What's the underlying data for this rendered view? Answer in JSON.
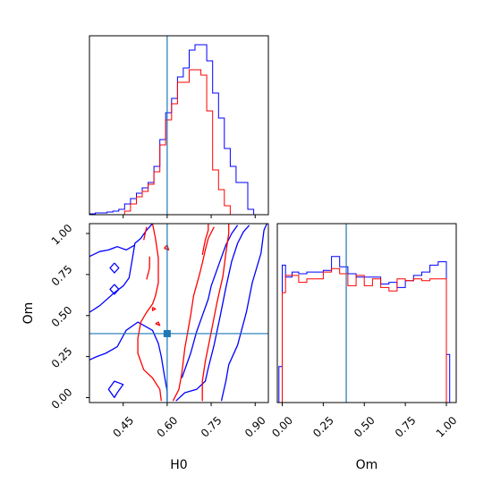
{
  "chart_data": {
    "type": "corner",
    "parameters": [
      "H0",
      "Om"
    ],
    "truths": {
      "H0": 0.6,
      "Om": 0.39
    },
    "colors": {
      "series_a": "#0000ff",
      "series_b": "#ff0000",
      "truth": "#1f77b4"
    },
    "series": [
      {
        "color": "#0000ff"
      },
      {
        "color": "#ff0000"
      }
    ],
    "axes": {
      "H0": {
        "range": [
          0.335,
          0.945
        ],
        "ticks": [
          0.45,
          0.6,
          0.75,
          0.9
        ],
        "tick_labels": [
          "0.45",
          "0.60",
          "0.75",
          "0.90"
        ],
        "label": "H0"
      },
      "Om": {
        "range": [
          -0.03,
          1.06
        ],
        "ticks": [
          0,
          0.25,
          0.5,
          0.75,
          1.0
        ],
        "tick_labels": [
          "0.00",
          "0.25",
          "0.50",
          "0.75",
          "1.00"
        ],
        "label": "Om"
      }
    },
    "hist_H0": {
      "edges": [
        0.335,
        0.355,
        0.375,
        0.395,
        0.415,
        0.435,
        0.455,
        0.475,
        0.495,
        0.515,
        0.535,
        0.555,
        0.575,
        0.595,
        0.615,
        0.635,
        0.655,
        0.675,
        0.695,
        0.715,
        0.735,
        0.755,
        0.775,
        0.795,
        0.815,
        0.835,
        0.855,
        0.875,
        0.895,
        0.915,
        0.935
      ],
      "series_a": [
        0.005,
        0.01,
        0.01,
        0.015,
        0.02,
        0.03,
        0.06,
        0.09,
        0.12,
        0.15,
        0.18,
        0.27,
        0.42,
        0.57,
        0.65,
        0.77,
        0.82,
        0.92,
        0.95,
        0.95,
        0.86,
        0.68,
        0.54,
        0.37,
        0.27,
        0.18,
        0.18,
        0.03,
        0.0,
        0.0
      ],
      "series_b": [
        0.0,
        0.0,
        0.0,
        0.0,
        0.0,
        0.0,
        0.02,
        0.06,
        0.1,
        0.13,
        0.17,
        0.24,
        0.39,
        0.53,
        0.62,
        0.74,
        0.74,
        0.81,
        0.81,
        0.78,
        0.58,
        0.25,
        0.14,
        0.05,
        0.0,
        0.0,
        0.0,
        0.0,
        0.0,
        0.0
      ]
    },
    "hist_Om": {
      "edges": [
        -0.02,
        0.0,
        0.02,
        0.06,
        0.1,
        0.15,
        0.2,
        0.25,
        0.3,
        0.35,
        0.4,
        0.45,
        0.5,
        0.55,
        0.6,
        0.65,
        0.7,
        0.75,
        0.8,
        0.85,
        0.9,
        0.95,
        1.0,
        1.02
      ],
      "series_a": [
        0.21,
        0.8,
        0.73,
        0.76,
        0.75,
        0.76,
        0.76,
        0.77,
        0.85,
        0.79,
        0.75,
        0.73,
        0.73,
        0.73,
        0.69,
        0.7,
        0.67,
        0.71,
        0.74,
        0.76,
        0.8,
        0.82,
        0.28
      ],
      "series_b": [
        0.0,
        0.64,
        0.74,
        0.74,
        0.7,
        0.72,
        0.72,
        0.76,
        0.78,
        0.75,
        0.68,
        0.74,
        0.68,
        0.72,
        0.67,
        0.65,
        0.72,
        0.71,
        0.72,
        0.71,
        0.72,
        0.72,
        0.0
      ]
    },
    "contours": {
      "series_a": [
        [
          [
            0.335,
            0.23
          ],
          [
            0.36,
            0.25
          ],
          [
            0.39,
            0.27
          ],
          [
            0.43,
            0.31
          ],
          [
            0.46,
            0.41
          ],
          [
            0.5,
            0.46
          ],
          [
            0.55,
            0.41
          ],
          [
            0.57,
            0.33
          ],
          [
            0.58,
            0.25
          ],
          [
            0.59,
            0.14
          ],
          [
            0.6,
            0.04
          ],
          [
            0.6,
            -0.02
          ]
        ],
        [
          [
            0.335,
            0.52
          ],
          [
            0.37,
            0.56
          ],
          [
            0.42,
            0.64
          ],
          [
            0.45,
            0.68
          ],
          [
            0.47,
            0.73
          ],
          [
            0.48,
            0.83
          ],
          [
            0.49,
            0.94
          ],
          [
            0.51,
            0.97
          ],
          [
            0.53,
            1.02
          ],
          [
            0.55,
            1.06
          ]
        ],
        [
          [
            0.335,
            0.86
          ],
          [
            0.37,
            0.89
          ],
          [
            0.4,
            0.9
          ],
          [
            0.43,
            0.92
          ],
          [
            0.46,
            0.9
          ],
          [
            0.49,
            0.93
          ]
        ],
        [
          [
            0.42,
            0.0
          ],
          [
            0.4,
            0.05
          ],
          [
            0.42,
            0.1
          ],
          [
            0.45,
            0.08
          ],
          [
            0.43,
            0.03
          ],
          [
            0.42,
            0.0
          ]
        ],
        [
          [
            0.42,
            0.82
          ],
          [
            0.435,
            0.79
          ],
          [
            0.42,
            0.76
          ],
          [
            0.405,
            0.79
          ],
          [
            0.42,
            0.82
          ]
        ],
        [
          [
            0.42,
            0.69
          ],
          [
            0.435,
            0.66
          ],
          [
            0.42,
            0.63
          ],
          [
            0.405,
            0.66
          ],
          [
            0.42,
            0.69
          ]
        ],
        [
          [
            0.63,
            -0.02
          ],
          [
            0.66,
            0.03
          ],
          [
            0.7,
            0.05
          ],
          [
            0.73,
            0.1
          ],
          [
            0.74,
            0.18
          ],
          [
            0.76,
            0.32
          ],
          [
            0.78,
            0.49
          ],
          [
            0.8,
            0.67
          ],
          [
            0.82,
            0.83
          ],
          [
            0.84,
            0.94
          ],
          [
            0.86,
            1.01
          ],
          [
            0.88,
            1.05
          ]
        ],
        [
          [
            0.65,
            0.12
          ],
          [
            0.68,
            0.27
          ],
          [
            0.7,
            0.4
          ],
          [
            0.72,
            0.5
          ],
          [
            0.74,
            0.6
          ],
          [
            0.75,
            0.68
          ],
          [
            0.78,
            0.83
          ],
          [
            0.8,
            0.93
          ],
          [
            0.82,
            1.0
          ],
          [
            0.84,
            1.05
          ]
        ],
        [
          [
            0.785,
            -0.02
          ],
          [
            0.8,
            0.1
          ],
          [
            0.81,
            0.2
          ],
          [
            0.84,
            0.32
          ],
          [
            0.87,
            0.52
          ],
          [
            0.89,
            0.7
          ],
          [
            0.92,
            0.88
          ],
          [
            0.93,
            1.02
          ],
          [
            0.94,
            1.06
          ]
        ]
      ],
      "series_b": [
        [
          [
            0.58,
            -0.02
          ],
          [
            0.575,
            0.05
          ],
          [
            0.55,
            0.12
          ],
          [
            0.52,
            0.17
          ],
          [
            0.5,
            0.27
          ],
          [
            0.5,
            0.36
          ],
          [
            0.51,
            0.46
          ],
          [
            0.53,
            0.52
          ],
          [
            0.55,
            0.57
          ],
          [
            0.56,
            0.62
          ],
          [
            0.57,
            0.7
          ],
          [
            0.57,
            0.85
          ],
          [
            0.56,
            0.97
          ],
          [
            0.55,
            1.06
          ]
        ],
        [
          [
            0.53,
            0.72
          ],
          [
            0.54,
            0.79
          ],
          [
            0.54,
            0.86
          ]
        ],
        [
          [
            0.52,
            0.96
          ],
          [
            0.525,
            1.0
          ],
          [
            0.53,
            1.04
          ]
        ],
        [
          [
            0.56,
            0.45
          ],
          [
            0.57,
            0.46
          ],
          [
            0.575,
            0.44
          ],
          [
            0.56,
            0.45
          ]
        ],
        [
          [
            0.55,
            0.55
          ],
          [
            0.56,
            0.54
          ],
          [
            0.55,
            0.53
          ],
          [
            0.55,
            0.55
          ]
        ],
        [
          [
            0.59,
            0.91
          ],
          [
            0.6,
            0.93
          ],
          [
            0.605,
            0.9
          ],
          [
            0.59,
            0.91
          ]
        ],
        [
          [
            0.62,
            -0.02
          ],
          [
            0.64,
            0.05
          ],
          [
            0.65,
            0.15
          ],
          [
            0.66,
            0.3
          ],
          [
            0.68,
            0.5
          ],
          [
            0.69,
            0.62
          ],
          [
            0.71,
            0.75
          ],
          [
            0.72,
            0.82
          ],
          [
            0.73,
            0.9
          ],
          [
            0.74,
            0.97
          ],
          [
            0.76,
            1.04
          ]
        ],
        [
          [
            0.72,
            -0.02
          ],
          [
            0.72,
            0.1
          ],
          [
            0.73,
            0.22
          ],
          [
            0.75,
            0.4
          ],
          [
            0.77,
            0.58
          ],
          [
            0.79,
            0.74
          ],
          [
            0.8,
            0.88
          ],
          [
            0.81,
            1.0
          ],
          [
            0.81,
            1.06
          ]
        ],
        [
          [
            0.72,
            0.87
          ],
          [
            0.73,
            0.96
          ],
          [
            0.74,
            1.02
          ],
          [
            0.74,
            1.06
          ]
        ]
      ]
    },
    "grid": false,
    "legend": "none"
  }
}
